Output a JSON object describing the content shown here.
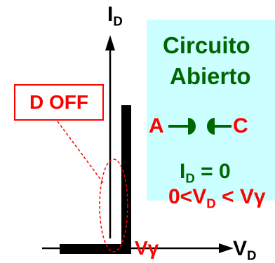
{
  "axes": {
    "y_label_main": "I",
    "y_label_sub": "D",
    "x_label_main": "V",
    "x_label_sub": "D",
    "threshold_label": "Vγ"
  },
  "region_label": "D OFF",
  "panel": {
    "title_line1": "Circuito",
    "title_line2": "Abierto",
    "terminal_a": "A",
    "terminal_c": "C",
    "eq1_main": "I",
    "eq1_sub": "D",
    "eq1_rest": " = 0",
    "eq2_prefix": "0<V",
    "eq2_sub": "D",
    "eq2_rest": " < Vγ"
  },
  "colors": {
    "panel_bg": "#ccffff",
    "panel_text": "#006600",
    "highlight": "#ff0000",
    "ink": "#000000"
  }
}
